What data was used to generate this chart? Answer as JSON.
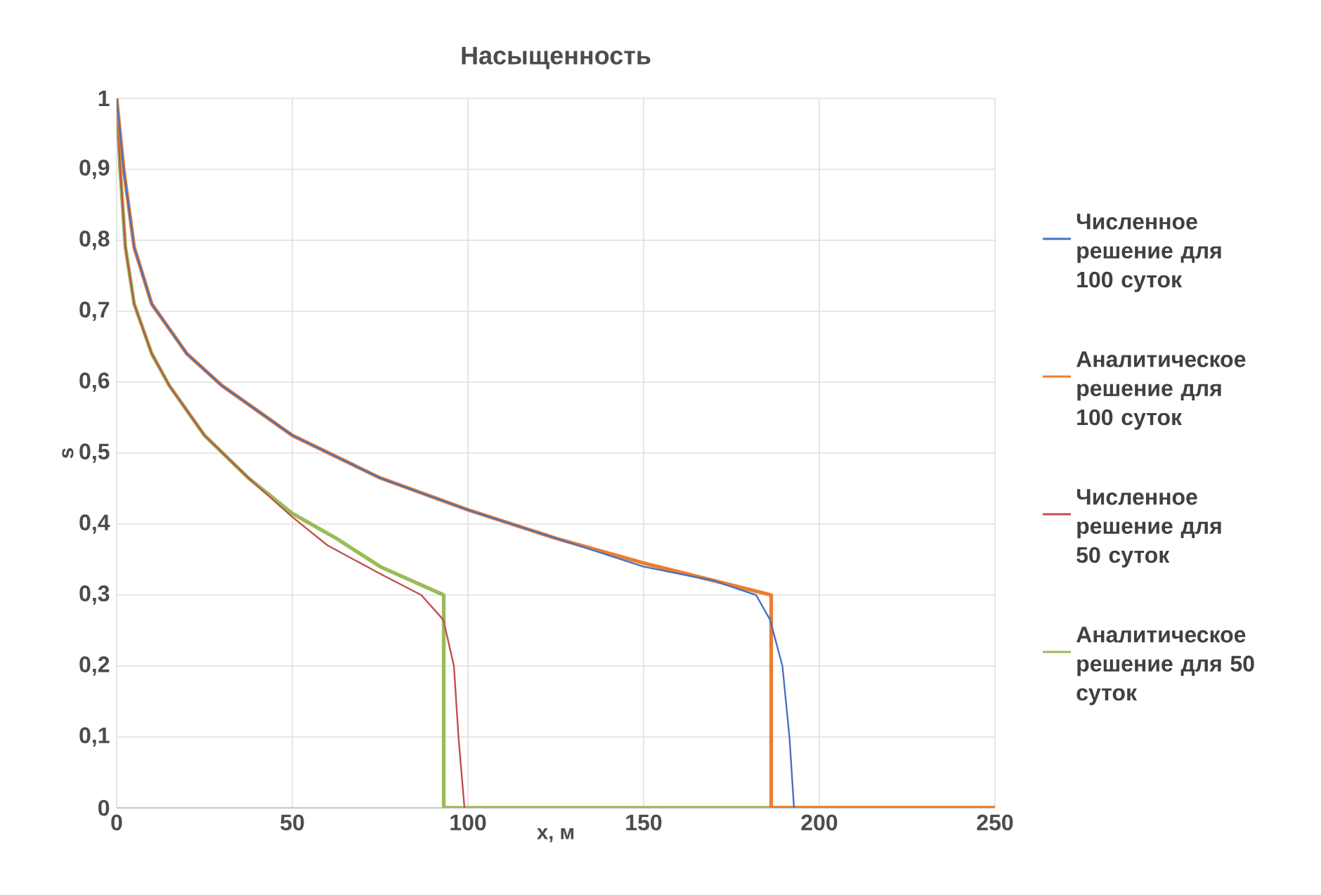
{
  "chart_data": {
    "type": "line",
    "title": "Насыщенность",
    "xlabel": "x, м",
    "ylabel": "s",
    "xlim": [
      0,
      250
    ],
    "xticks": [
      0,
      50,
      100,
      150,
      200,
      250
    ],
    "ylim": [
      0,
      1
    ],
    "yticks": [
      {
        "value": 0,
        "label": "0"
      },
      {
        "value": 0.1,
        "label": "0,1"
      },
      {
        "value": 0.2,
        "label": "0,2"
      },
      {
        "value": 0.3,
        "label": "0,3"
      },
      {
        "value": 0.4,
        "label": "0,4"
      },
      {
        "value": 0.5,
        "label": "0,5"
      },
      {
        "value": 0.6,
        "label": "0,6"
      },
      {
        "value": 0.7,
        "label": "0,7"
      },
      {
        "value": 0.8,
        "label": "0,8"
      },
      {
        "value": 0.9,
        "label": "0,9"
      },
      {
        "value": 1,
        "label": "1"
      }
    ],
    "grid": true,
    "legend": "right",
    "line_style": "solid",
    "series": [
      {
        "name": "Численное решение для 100 суток",
        "color": "#4472c4",
        "x": [
          0,
          2,
          5,
          10,
          20,
          30,
          50,
          75,
          100,
          125,
          150,
          170,
          182,
          186,
          189.5,
          191.5,
          192.8
        ],
        "values": [
          1,
          0.9,
          0.79,
          0.71,
          0.64,
          0.595,
          0.525,
          0.465,
          0.42,
          0.38,
          0.34,
          0.32,
          0.3,
          0.265,
          0.2,
          0.1,
          0
        ]
      },
      {
        "name": "Аналитическое решение для 100 суток",
        "color": "#ed7d31",
        "x": [
          0,
          2,
          5,
          10,
          20,
          30,
          50,
          75,
          100,
          125,
          150,
          186.3,
          186.3,
          250
        ],
        "values": [
          1,
          0.9,
          0.79,
          0.71,
          0.64,
          0.595,
          0.525,
          0.465,
          0.42,
          0.38,
          0.345,
          0.3,
          0,
          0
        ]
      },
      {
        "name": "Численное решение для 50 суток",
        "color": "#c0504d",
        "x": [
          0,
          1,
          2.5,
          5,
          10,
          15,
          25,
          37.5,
          50,
          60,
          75,
          86.7,
          93,
          96,
          97.3,
          99
        ],
        "values": [
          1,
          0.9,
          0.79,
          0.71,
          0.64,
          0.595,
          0.525,
          0.465,
          0.41,
          0.37,
          0.33,
          0.3,
          0.265,
          0.2,
          0.1,
          0
        ]
      },
      {
        "name": "Аналитическое решение для 50 суток",
        "color": "#9bbb59",
        "x": [
          0,
          1,
          2.5,
          5,
          10,
          15,
          25,
          37.5,
          50,
          62.5,
          75,
          93.1,
          93.1,
          250
        ],
        "values": [
          1,
          0.9,
          0.79,
          0.71,
          0.64,
          0.595,
          0.525,
          0.465,
          0.415,
          0.38,
          0.34,
          0.3,
          0,
          0
        ]
      }
    ]
  }
}
